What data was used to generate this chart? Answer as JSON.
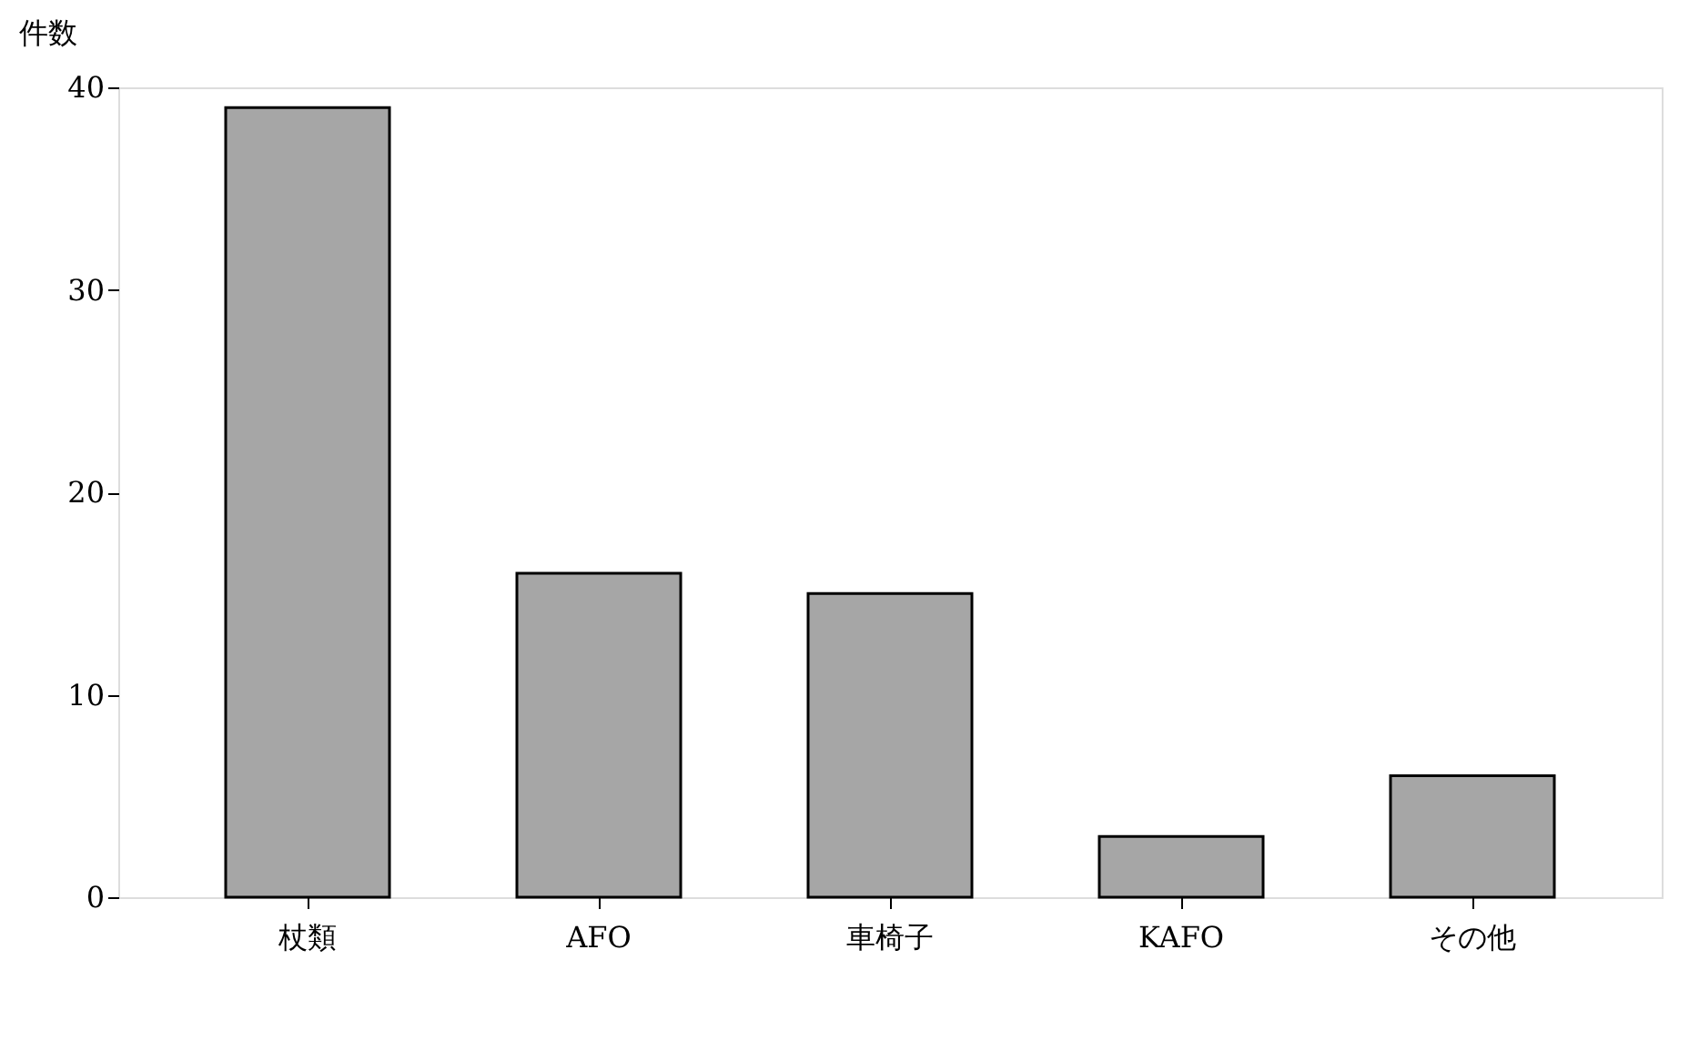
{
  "chart_data": {
    "type": "bar",
    "ylabel": "件数",
    "categories": [
      "杖類",
      "AFO",
      "車椅子",
      "KAFO",
      "その他"
    ],
    "values": [
      39,
      16,
      15,
      3,
      6
    ],
    "color": "#a6a6a6",
    "ylim": [
      0,
      40
    ],
    "yticks": [
      0,
      10,
      20,
      30,
      40
    ],
    "grid": false
  }
}
